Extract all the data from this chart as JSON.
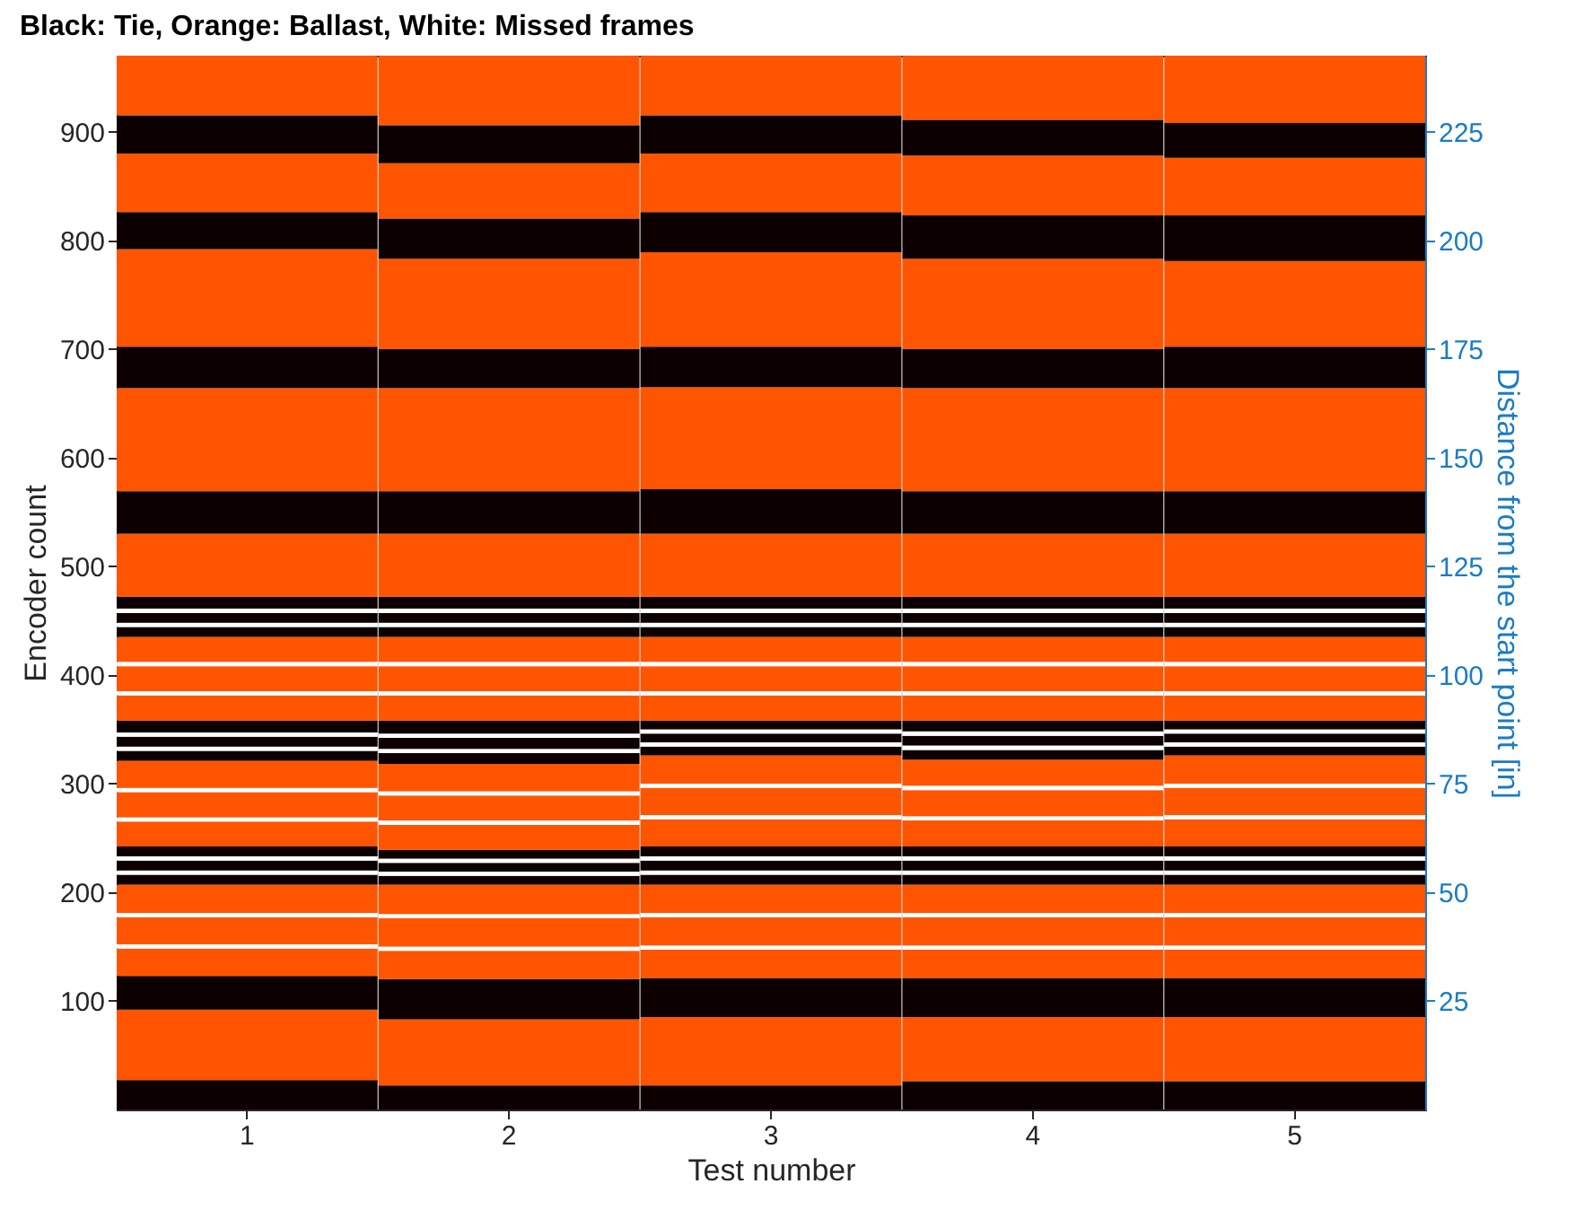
{
  "chart_data": {
    "type": "bar",
    "stacked": true,
    "title": "Black: Tie,  Orange: Ballast,  White: Missed frames",
    "xlabel": "Test number",
    "ylabel": "Encoder count",
    "y2label": "Distance from the start point [in]",
    "categories": [
      "1",
      "2",
      "3",
      "4",
      "5"
    ],
    "ylim": [
      0,
      970
    ],
    "yticks": [
      100,
      200,
      300,
      400,
      500,
      600,
      700,
      800,
      900
    ],
    "y2lim": [
      0,
      242.5
    ],
    "y2ticks": [
      25,
      50,
      75,
      100,
      125,
      150,
      175,
      200,
      225
    ],
    "series": [
      {
        "color": "#0d0000",
        "values": [
          27,
          22,
          22,
          26,
          26
        ]
      },
      {
        "color": "#ff5500",
        "values": [
          65,
          61,
          63,
          59,
          59
        ]
      },
      {
        "color": "#0d0000",
        "values": [
          31,
          37,
          36,
          36,
          36
        ]
      },
      {
        "color": "#ff5500",
        "values": [
          25,
          26,
          26,
          26,
          26
        ]
      },
      {
        "color": "#ffffff",
        "values": [
          4,
          4,
          4,
          4,
          4
        ]
      },
      {
        "color": "#ff5500",
        "values": [
          25,
          26,
          26,
          26,
          26
        ]
      },
      {
        "color": "#ffffff",
        "values": [
          4,
          4,
          4,
          4,
          4
        ]
      },
      {
        "color": "#ff5500",
        "values": [
          26,
          27,
          26,
          26,
          26
        ]
      },
      {
        "color": "#0d0000",
        "values": [
          9,
          8,
          9,
          9,
          9
        ]
      },
      {
        "color": "#ffffff",
        "values": [
          4,
          4,
          4,
          4,
          4
        ]
      },
      {
        "color": "#0d0000",
        "values": [
          9,
          8,
          9,
          9,
          9
        ]
      },
      {
        "color": "#ffffff",
        "values": [
          4,
          4,
          4,
          4,
          4
        ]
      },
      {
        "color": "#0d0000",
        "values": [
          9,
          8,
          9,
          9,
          9
        ]
      },
      {
        "color": "#ff5500",
        "values": [
          23,
          23,
          25,
          24,
          25
        ]
      },
      {
        "color": "#ffffff",
        "values": [
          4,
          4,
          4,
          4,
          4
        ]
      },
      {
        "color": "#ff5500",
        "values": [
          23,
          23,
          25,
          24,
          25
        ]
      },
      {
        "color": "#ffffff",
        "values": [
          4,
          4,
          4,
          4,
          4
        ]
      },
      {
        "color": "#ff5500",
        "values": [
          25,
          25,
          26,
          24,
          26
        ]
      },
      {
        "color": "#0d0000",
        "values": [
          9,
          10,
          8,
          9,
          8
        ]
      },
      {
        "color": "#ffffff",
        "values": [
          4,
          4,
          4,
          4,
          4
        ]
      },
      {
        "color": "#0d0000",
        "values": [
          9,
          10,
          8,
          9,
          8
        ]
      },
      {
        "color": "#ffffff",
        "values": [
          4,
          4,
          4,
          4,
          4
        ]
      },
      {
        "color": "#0d0000",
        "values": [
          11,
          12,
          8,
          10,
          8
        ]
      },
      {
        "color": "#ff5500",
        "values": [
          23,
          23,
          23,
          23,
          23
        ]
      },
      {
        "color": "#ffffff",
        "values": [
          4,
          4,
          4,
          4,
          4
        ]
      },
      {
        "color": "#ff5500",
        "values": [
          23,
          23,
          23,
          23,
          23
        ]
      },
      {
        "color": "#ffffff",
        "values": [
          4,
          4,
          4,
          4,
          4
        ]
      },
      {
        "color": "#ff5500",
        "values": [
          23,
          23,
          23,
          23,
          23
        ]
      },
      {
        "color": "#0d0000",
        "values": [
          9,
          9,
          9,
          9,
          9
        ]
      },
      {
        "color": "#ffffff",
        "values": [
          4,
          4,
          4,
          4,
          4
        ]
      },
      {
        "color": "#0d0000",
        "values": [
          9,
          9,
          9,
          9,
          9
        ]
      },
      {
        "color": "#ffffff",
        "values": [
          4,
          4,
          4,
          4,
          4
        ]
      },
      {
        "color": "#0d0000",
        "values": [
          11,
          11,
          11,
          11,
          11
        ]
      },
      {
        "color": "#ff5500",
        "values": [
          58,
          58,
          58,
          58,
          58
        ]
      },
      {
        "color": "#0d0000",
        "values": [
          39,
          39,
          41,
          39,
          39
        ]
      },
      {
        "color": "#ff5500",
        "values": [
          95,
          95,
          94,
          95,
          95
        ]
      },
      {
        "color": "#0d0000",
        "values": [
          38,
          36,
          37,
          36,
          38
        ]
      },
      {
        "color": "#ff5500",
        "values": [
          90,
          83,
          87,
          83,
          79
        ]
      },
      {
        "color": "#0d0000",
        "values": [
          34,
          37,
          37,
          40,
          42
        ]
      },
      {
        "color": "#ff5500",
        "values": [
          54,
          51,
          54,
          55,
          53
        ]
      },
      {
        "color": "#0d0000",
        "values": [
          35,
          35,
          35,
          33,
          32
        ]
      },
      {
        "color": "#ff5500",
        "values": [
          55,
          64,
          55,
          59,
          62
        ]
      }
    ]
  }
}
